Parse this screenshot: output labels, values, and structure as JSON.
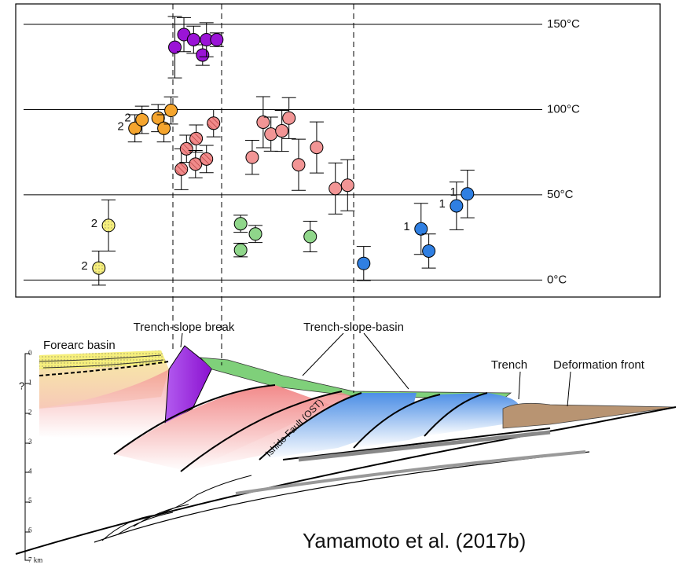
{
  "chart_data": {
    "type": "scatter",
    "ylim": [
      -10,
      162
    ],
    "yticks": [
      {
        "value": 0,
        "label": "0°C"
      },
      {
        "value": 50,
        "label": "50°C"
      },
      {
        "value": 100,
        "label": "100°C"
      },
      {
        "value": 150,
        "label": "150°C"
      }
    ],
    "xlim": [
      0,
      100
    ],
    "grid": true,
    "series": [
      {
        "color": "#f6ef7c",
        "dotted": true,
        "x": [
          14.4,
          12.9
        ],
        "values": [
          32,
          7
        ],
        "errors": [
          15,
          10
        ],
        "point_labels": [
          "2",
          "2"
        ]
      },
      {
        "color": "#f5a52e",
        "x": [
          18.5,
          19.6,
          22.1,
          23.0,
          24.1
        ],
        "values": [
          89,
          94,
          95,
          89,
          99.5
        ],
        "errors": [
          8,
          8,
          8,
          8,
          8
        ],
        "point_labels": [
          "2",
          "2",
          null,
          null,
          null
        ]
      },
      {
        "color": "#9a14d6",
        "x": [
          24.7,
          26.1,
          27.6,
          29.0,
          29.6,
          31.2
        ],
        "values": [
          136.6,
          144,
          141,
          132,
          141,
          141
        ],
        "errors": [
          18,
          10,
          8,
          6,
          10,
          4
        ],
        "point_labels": [
          null,
          null,
          null,
          null,
          null,
          null
        ]
      },
      {
        "color": "#f08a8a",
        "hatch": true,
        "x": [
          25.7,
          26.5,
          27.9,
          28.0,
          29.6,
          30.7
        ],
        "values": [
          65,
          77,
          68,
          83,
          71,
          92
        ],
        "errors": [
          12,
          8,
          8,
          8,
          8,
          8
        ],
        "point_labels": [
          null,
          null,
          null,
          null,
          null,
          null
        ]
      },
      {
        "color": "#f29595",
        "x": [
          36.7,
          38.4,
          39.6,
          41.3,
          42.4,
          43.9,
          46.7,
          49.6,
          51.5
        ],
        "values": [
          72,
          92.6,
          85.6,
          87.5,
          95,
          67.6,
          77.8,
          53.7,
          55.6
        ],
        "errors": [
          10,
          15,
          10,
          12,
          12,
          15,
          15,
          15,
          15
        ],
        "point_labels": [
          null,
          null,
          null,
          null,
          null,
          null,
          null,
          null,
          null
        ]
      },
      {
        "color": "#8fd68a",
        "x": [
          34.9,
          37.2,
          34.9,
          45.7
        ],
        "values": [
          33,
          27,
          17.6,
          25.5
        ],
        "errors": [
          5,
          5,
          4,
          9
        ],
        "point_labels": [
          null,
          null,
          null,
          null
        ]
      },
      {
        "color": "#2f7fe2",
        "x": [
          54.0,
          62.9,
          64.1,
          68.4,
          70.1
        ],
        "values": [
          9.7,
          30,
          17,
          43.5,
          50.5
        ],
        "errors": [
          10,
          15,
          10,
          14,
          14
        ],
        "point_labels": [
          null,
          "1",
          null,
          "1",
          "1"
        ]
      }
    ]
  },
  "diagram": {
    "labels": {
      "trench_slope_break": "Trench-slope break",
      "forearc_basin": "Forearc basin",
      "trench_slope_basin": "Trench-slope-basin",
      "trench": "Trench",
      "deformation_front": "Deformation front",
      "fault": "Ishido Fault (OST)",
      "question": "?"
    },
    "depth_labels": [
      "0",
      "1",
      "2",
      "3",
      "4",
      "5",
      "6",
      "7 km"
    ],
    "credit": "Yamamoto et al. (2017b)"
  }
}
